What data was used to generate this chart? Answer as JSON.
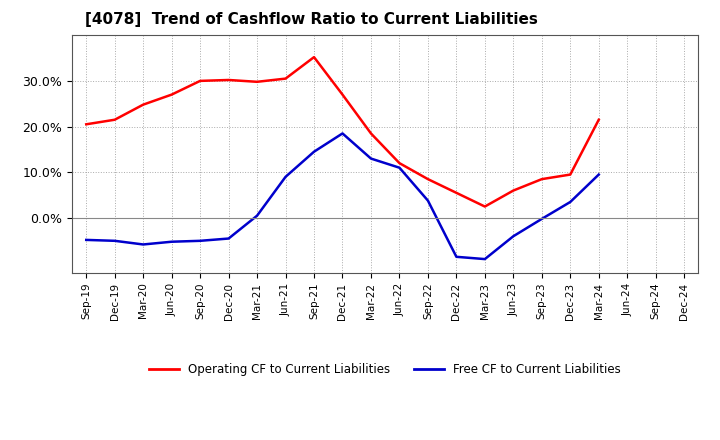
{
  "title": "[4078]  Trend of Cashflow Ratio to Current Liabilities",
  "x_labels": [
    "Sep-19",
    "Dec-19",
    "Mar-20",
    "Jun-20",
    "Sep-20",
    "Dec-20",
    "Mar-21",
    "Jun-21",
    "Sep-21",
    "Dec-21",
    "Mar-22",
    "Jun-22",
    "Sep-22",
    "Dec-22",
    "Mar-23",
    "Jun-23",
    "Sep-23",
    "Dec-23",
    "Mar-24",
    "Jun-24",
    "Sep-24",
    "Dec-24"
  ],
  "operating_cf": [
    0.205,
    0.215,
    0.248,
    0.27,
    0.3,
    0.302,
    0.298,
    0.305,
    0.352,
    0.27,
    0.185,
    0.12,
    0.085,
    0.055,
    0.025,
    0.06,
    0.085,
    0.095,
    0.215,
    null,
    null,
    null
  ],
  "free_cf": [
    -0.048,
    -0.05,
    -0.058,
    -0.052,
    -0.05,
    -0.045,
    0.005,
    0.09,
    0.145,
    0.185,
    0.13,
    0.11,
    0.038,
    -0.085,
    -0.09,
    -0.04,
    -0.002,
    0.035,
    0.095,
    null,
    null,
    null
  ],
  "operating_color": "#FF0000",
  "free_color": "#0000CC",
  "ylim": [
    -0.12,
    0.4
  ],
  "yticks": [
    0.0,
    0.1,
    0.2,
    0.3
  ],
  "background_color": "#FFFFFF",
  "plot_bg_color": "#FFFFFF",
  "grid_color": "#AAAAAA",
  "legend_labels": [
    "Operating CF to Current Liabilities",
    "Free CF to Current Liabilities"
  ]
}
